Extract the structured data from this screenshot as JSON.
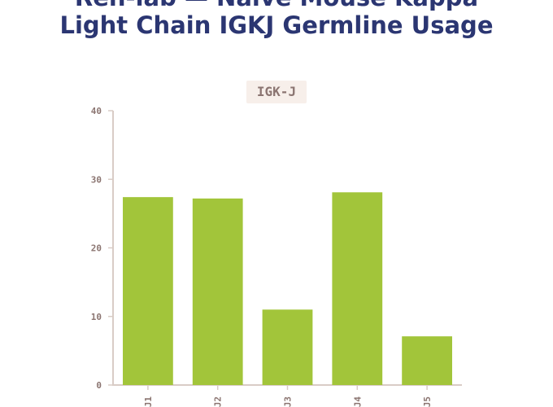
{
  "title": {
    "line1": "Ren-lab — Naïve Mouse Kappa",
    "line2": "Light Chain IGKJ Germline Usage"
  },
  "chart_data": {
    "type": "bar",
    "panel_label": "IGK-J",
    "categories": [
      "J1",
      "J2",
      "J3",
      "J4",
      "J5"
    ],
    "values": [
      27.4,
      27.2,
      11.0,
      28.1,
      7.1
    ],
    "yticks": [
      0,
      10,
      20,
      30,
      40
    ],
    "ylim": [
      0,
      40
    ],
    "grid": false,
    "bar_color": "#a2c53a",
    "xlabel": "",
    "ylabel": ""
  },
  "colors": {
    "title": "#2b3672",
    "axis": "#d9ccc6",
    "tick_text": "#8b7571",
    "panel_label_bg": "#f7efea"
  }
}
